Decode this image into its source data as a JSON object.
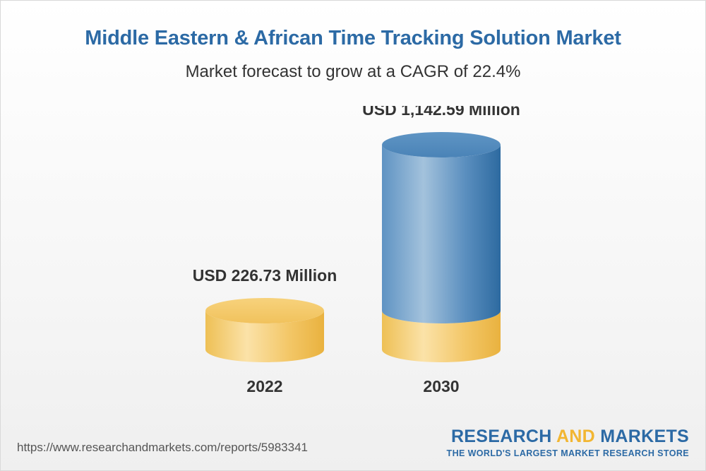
{
  "title": "Middle Eastern & African Time Tracking Solution Market",
  "subtitle": "Market forecast to grow at a CAGR of 22.4%",
  "colors": {
    "title": "#2c6aa5",
    "gold": "#f2c35a",
    "blue": "#3f7fb5",
    "brand_accent": "#f2b632"
  },
  "chart_data": {
    "type": "bar",
    "style": "3d-cylinder",
    "categories": [
      "2022",
      "2030"
    ],
    "values": [
      226.73,
      1142.59
    ],
    "value_labels": [
      "USD 226.73 Million",
      "USD 1,142.59 Million"
    ],
    "unit": "USD Million",
    "cagr": "22.4%",
    "grid": false
  },
  "footer": {
    "url": "https://www.researchandmarkets.com/reports/5983341",
    "brand_part1": "RESEARCH ",
    "brand_part2": "AND",
    "brand_part3": " MARKETS",
    "tagline": "THE WORLD'S LARGEST MARKET RESEARCH STORE"
  }
}
